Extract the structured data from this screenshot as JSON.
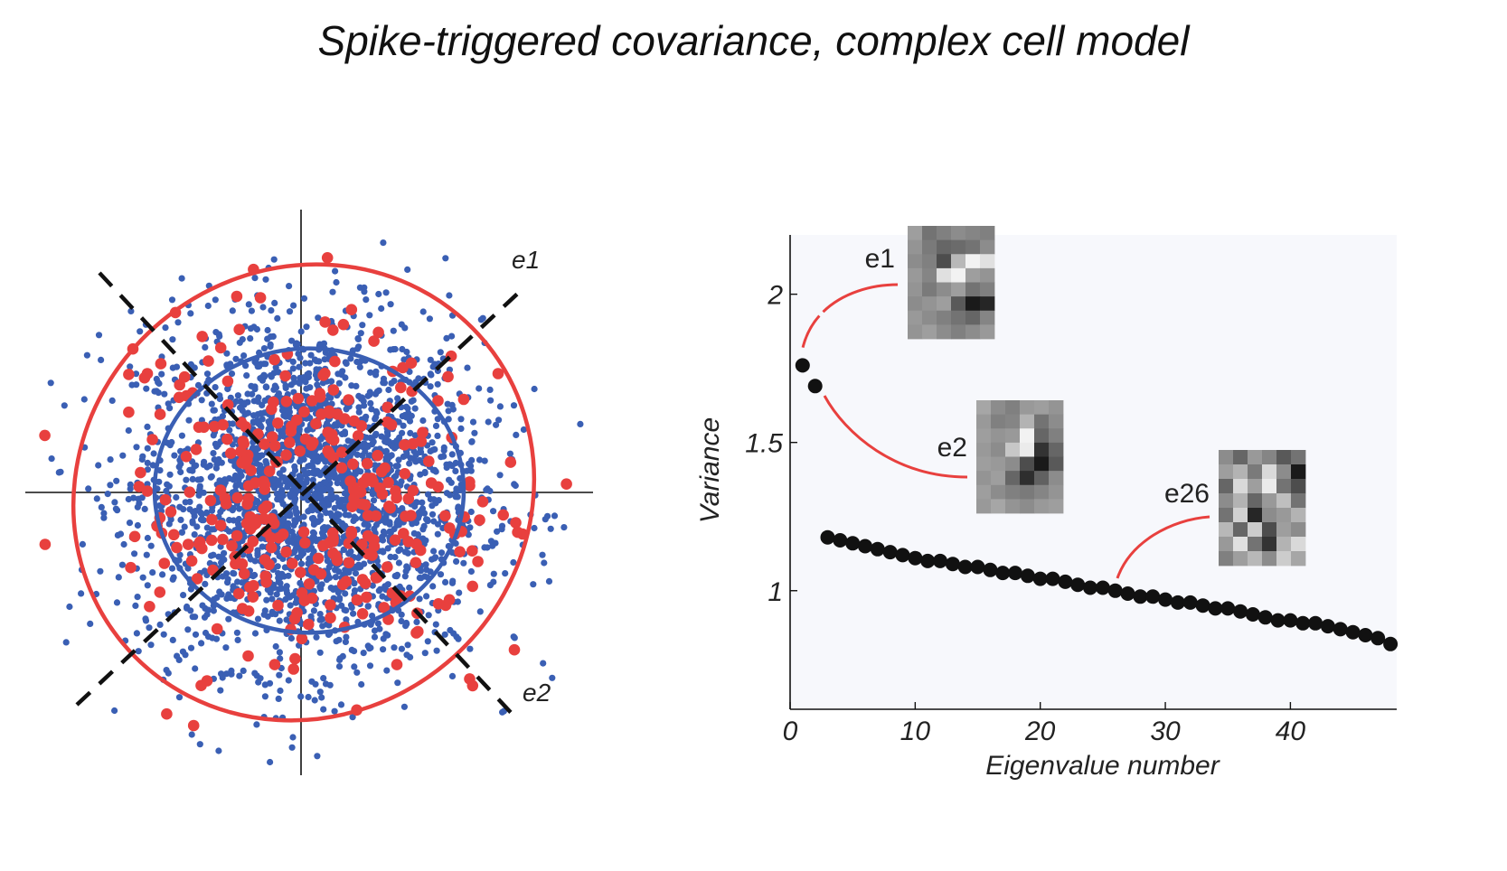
{
  "title": "Spike-triggered covariance, complex cell model",
  "colors": {
    "raw_stimuli": "#3a5fb4",
    "spike_triggered": "#e8403e",
    "eigen_points": "#111111",
    "axis": "#111111",
    "plot_background": "#f7f8fc"
  },
  "chart_data": [
    {
      "type": "scatter",
      "title": "",
      "xlabel": "",
      "ylabel": "",
      "xlim": [
        -3.3,
        3.3
      ],
      "ylim": [
        -3.3,
        3.3
      ],
      "series": [
        {
          "color": "#3a5fb4",
          "count": 2500,
          "covariance": [
            [
              1.0,
              0.0
            ],
            [
              0.0,
              1.0
            ]
          ],
          "ellipse_axes": [
            1.8,
            1.8
          ]
        },
        {
          "color": "#e8403e",
          "count": 330,
          "covariance_eigenvalues": {
            "e1": 1.76,
            "e2": 1.69
          },
          "ellipse_axes": [
            2.8,
            2.7
          ]
        }
      ],
      "eigenvector_axes": [
        {
          "label": "e1",
          "angle_deg": 45
        },
        {
          "label": "e2",
          "angle_deg": -45
        }
      ],
      "grid": false
    },
    {
      "type": "scatter",
      "title": "",
      "xlabel": "Eigenvalue number",
      "ylabel": "Variance",
      "xlim": [
        0,
        48.5
      ],
      "ylim": [
        0.6,
        2.2
      ],
      "xticks": [
        0,
        10,
        20,
        30,
        40
      ],
      "yticks": [
        1,
        1.5,
        2
      ],
      "xtick_labels": [
        "0",
        "10",
        "20",
        "30",
        "40"
      ],
      "ytick_labels": [
        "1",
        "1.5",
        "2"
      ],
      "x": [
        1,
        2,
        3,
        4,
        5,
        6,
        7,
        8,
        9,
        10,
        11,
        12,
        13,
        14,
        15,
        16,
        17,
        18,
        19,
        20,
        21,
        22,
        23,
        24,
        25,
        26,
        27,
        28,
        29,
        30,
        31,
        32,
        33,
        34,
        35,
        36,
        37,
        38,
        39,
        40,
        41,
        42,
        43,
        44,
        45,
        46,
        47,
        48
      ],
      "y": [
        1.76,
        1.69,
        1.18,
        1.17,
        1.16,
        1.15,
        1.14,
        1.13,
        1.12,
        1.11,
        1.1,
        1.1,
        1.09,
        1.08,
        1.08,
        1.07,
        1.06,
        1.06,
        1.05,
        1.04,
        1.04,
        1.03,
        1.02,
        1.01,
        1.01,
        1.0,
        0.99,
        0.98,
        0.98,
        0.97,
        0.96,
        0.96,
        0.95,
        0.94,
        0.94,
        0.93,
        0.92,
        0.91,
        0.9,
        0.9,
        0.89,
        0.89,
        0.88,
        0.87,
        0.86,
        0.85,
        0.84,
        0.82
      ],
      "grid": false,
      "insets": [
        {
          "label": "e1",
          "eigenvalue_index": 1,
          "pixels": [
            [
              0.62,
              0.45,
              0.5,
              0.55,
              0.52,
              0.5
            ],
            [
              0.58,
              0.48,
              0.4,
              0.42,
              0.45,
              0.55
            ],
            [
              0.55,
              0.5,
              0.3,
              0.72,
              0.95,
              0.88
            ],
            [
              0.6,
              0.52,
              0.88,
              0.95,
              0.62,
              0.58
            ],
            [
              0.58,
              0.48,
              0.55,
              0.62,
              0.45,
              0.5
            ],
            [
              0.55,
              0.58,
              0.62,
              0.35,
              0.1,
              0.15
            ],
            [
              0.6,
              0.55,
              0.5,
              0.45,
              0.4,
              0.52
            ],
            [
              0.58,
              0.62,
              0.55,
              0.5,
              0.55,
              0.6
            ]
          ]
        },
        {
          "label": "e2",
          "eigenvalue_index": 2,
          "pixels": [
            [
              0.65,
              0.55,
              0.5,
              0.6,
              0.62,
              0.58
            ],
            [
              0.6,
              0.5,
              0.52,
              0.7,
              0.45,
              0.55
            ],
            [
              0.62,
              0.58,
              0.6,
              0.95,
              0.4,
              0.5
            ],
            [
              0.6,
              0.55,
              0.78,
              0.92,
              0.2,
              0.4
            ],
            [
              0.62,
              0.6,
              0.55,
              0.3,
              0.1,
              0.35
            ],
            [
              0.58,
              0.62,
              0.4,
              0.18,
              0.38,
              0.55
            ],
            [
              0.62,
              0.55,
              0.5,
              0.48,
              0.52,
              0.58
            ],
            [
              0.6,
              0.65,
              0.58,
              0.55,
              0.6,
              0.62
            ]
          ]
        },
        {
          "label": "e26",
          "eigenvalue_index": 26,
          "pixels": [
            [
              0.55,
              0.4,
              0.6,
              0.52,
              0.35,
              0.45
            ],
            [
              0.62,
              0.7,
              0.48,
              0.85,
              0.55,
              0.1
            ],
            [
              0.4,
              0.85,
              0.62,
              0.92,
              0.45,
              0.3
            ],
            [
              0.55,
              0.7,
              0.4,
              0.6,
              0.75,
              0.45
            ],
            [
              0.45,
              0.82,
              0.15,
              0.55,
              0.6,
              0.7
            ],
            [
              0.72,
              0.4,
              0.8,
              0.3,
              0.62,
              0.55
            ],
            [
              0.6,
              0.88,
              0.45,
              0.2,
              0.7,
              0.85
            ],
            [
              0.5,
              0.62,
              0.72,
              0.55,
              0.8,
              0.65
            ]
          ]
        }
      ]
    }
  ]
}
